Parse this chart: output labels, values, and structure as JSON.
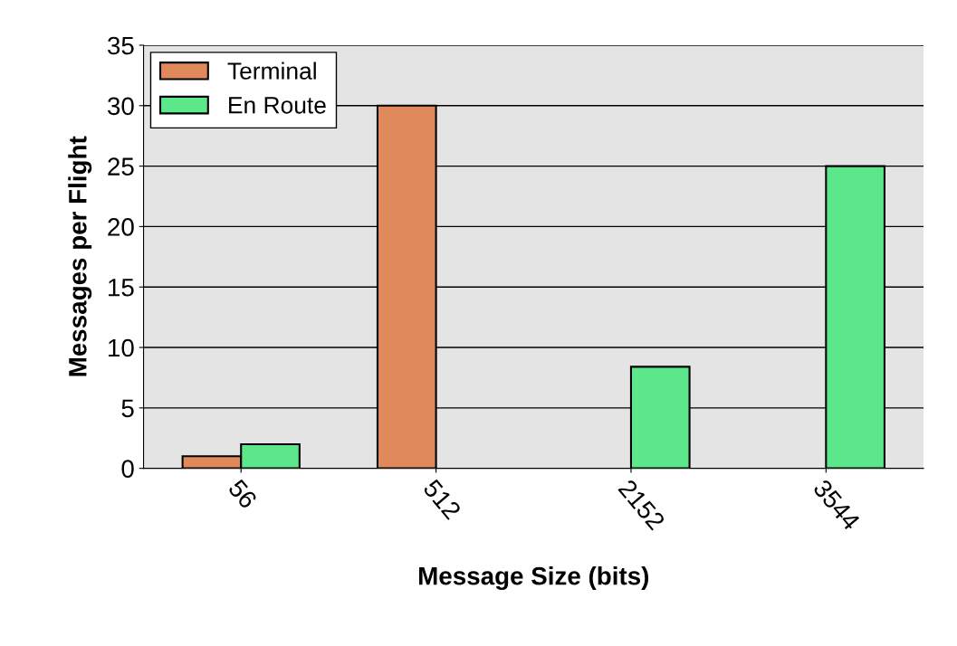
{
  "chart_data": {
    "type": "bar",
    "xlabel": "Message Size (bits)",
    "ylabel": "Messages per Flight",
    "categories": [
      "56",
      "512",
      "2152",
      "3544"
    ],
    "series": [
      {
        "name": "Terminal",
        "color": "#e08a5c",
        "values": [
          1,
          30,
          null,
          null
        ]
      },
      {
        "name": "En Route",
        "color": "#5ce88a",
        "values": [
          2,
          null,
          8.4,
          25
        ]
      }
    ],
    "ylim": [
      0,
      35
    ],
    "yticks": [
      0,
      5,
      10,
      15,
      20,
      25,
      30,
      35
    ],
    "grid": "y",
    "legend": "top left"
  }
}
